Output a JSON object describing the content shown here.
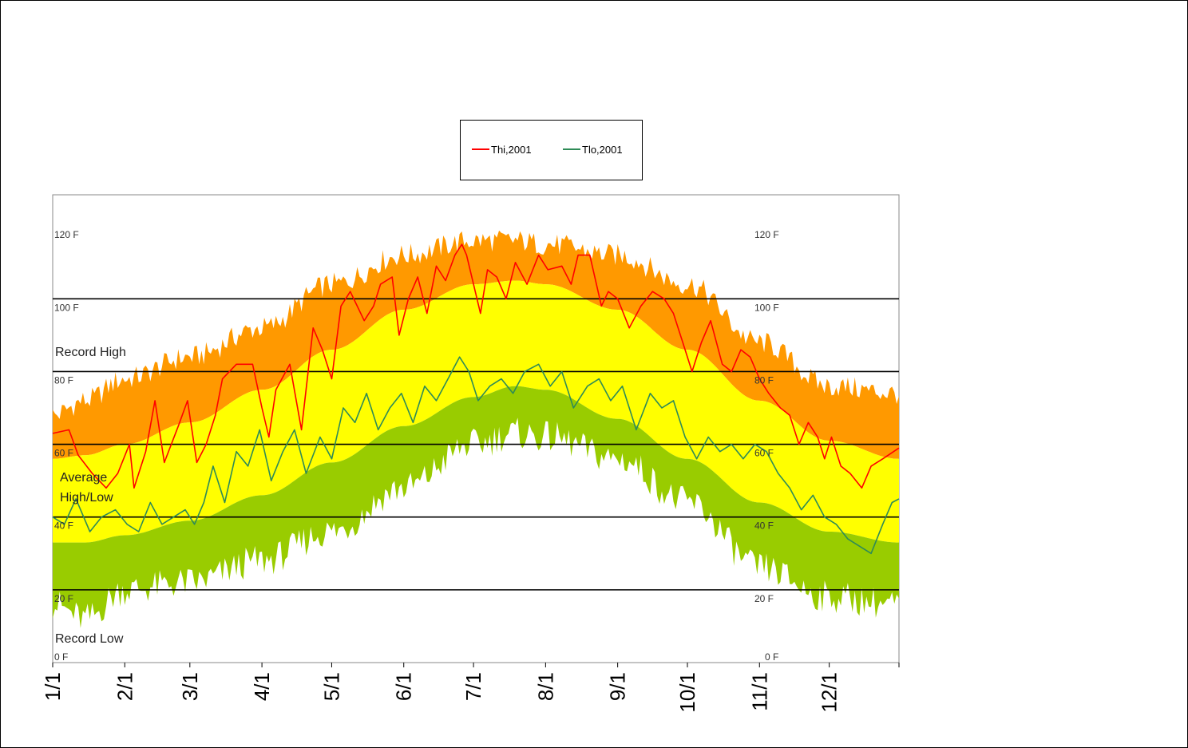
{
  "legend": {
    "items": [
      {
        "name": "Thi,2001",
        "color": "#ff0000"
      },
      {
        "name": "Tlo,2001",
        "color": "#2e8b57"
      }
    ]
  },
  "band_labels": {
    "record_high": "Record High",
    "average_line1": "Average",
    "average_line2": "High/Low",
    "record_low": "Record Low"
  },
  "colors": {
    "record_band": "#ff9900",
    "average_band": "#ffff00",
    "low_band": "#99cc00",
    "thi": "#ff0000",
    "tlo": "#2e8b57",
    "gridline": "#000000"
  },
  "chart_data": {
    "type": "line",
    "title": "",
    "xlabel": "",
    "ylabel": "",
    "ylim": [
      0,
      120
    ],
    "grid": true,
    "legend_position": "top-center",
    "y_ticks_left": [
      "0 F",
      "20 F",
      "40 F",
      "60 F",
      "80 F",
      "100 F",
      "120 F"
    ],
    "y_ticks_right": [
      "0 F",
      "20 F",
      "40 F",
      "60 F",
      "80 F",
      "100 F",
      "120 F"
    ],
    "x_ticks": [
      "1/1",
      "2/1",
      "3/1",
      "4/1",
      "5/1",
      "6/1",
      "7/1",
      "8/1",
      "9/1",
      "10/1",
      "11/1",
      "12/1"
    ],
    "x_tick_days": [
      1,
      32,
      60,
      91,
      121,
      152,
      182,
      213,
      244,
      274,
      305,
      335
    ],
    "x_range_days": [
      1,
      365
    ],
    "bands": {
      "record_high": {
        "x": [
          1,
          15,
          32,
          60,
          91,
          121,
          152,
          182,
          200,
          213,
          244,
          274,
          305,
          335,
          365
        ],
        "y": [
          68,
          72,
          78,
          84,
          92,
          104,
          112,
          116,
          116,
          115,
          112,
          104,
          88,
          76,
          74
        ]
      },
      "avg_high": {
        "x": [
          1,
          15,
          32,
          60,
          91,
          121,
          152,
          182,
          200,
          213,
          244,
          274,
          305,
          335,
          365
        ],
        "y": [
          56,
          57,
          60,
          66,
          75,
          86,
          97,
          104,
          105,
          104,
          97,
          86,
          72,
          61,
          56
        ]
      },
      "avg_low": {
        "x": [
          1,
          15,
          32,
          60,
          91,
          121,
          152,
          182,
          200,
          213,
          244,
          274,
          305,
          335,
          365
        ],
        "y": [
          33,
          33,
          35,
          39,
          46,
          55,
          65,
          73,
          76,
          75,
          67,
          56,
          44,
          36,
          33
        ]
      },
      "record_low": {
        "x": [
          1,
          15,
          32,
          60,
          91,
          121,
          152,
          182,
          200,
          213,
          244,
          274,
          305,
          335,
          365
        ],
        "y": [
          16,
          12,
          20,
          22,
          28,
          36,
          48,
          60,
          63,
          62,
          56,
          44,
          26,
          18,
          16
        ]
      }
    },
    "series": [
      {
        "name": "Thi,2001",
        "x": [
          1,
          8,
          12,
          18,
          24,
          29,
          34,
          36,
          41,
          45,
          49,
          55,
          59,
          63,
          67,
          71,
          74,
          80,
          87,
          91,
          94,
          97,
          103,
          108,
          113,
          117,
          121,
          125,
          129,
          135,
          139,
          142,
          147,
          150,
          154,
          158,
          162,
          166,
          170,
          174,
          177,
          179,
          182,
          185,
          188,
          192,
          196,
          200,
          205,
          210,
          214,
          220,
          224,
          227,
          232,
          237,
          240,
          244,
          249,
          254,
          259,
          264,
          268,
          272,
          276,
          280,
          284,
          289,
          293,
          297,
          301,
          305,
          309,
          314,
          318,
          322,
          326,
          330,
          333,
          336,
          340,
          344,
          349,
          353,
          358,
          365
        ],
        "y": [
          63,
          64,
          57,
          52,
          48,
          52,
          60,
          48,
          58,
          72,
          55,
          65,
          72,
          55,
          60,
          68,
          78,
          82,
          82,
          70,
          62,
          75,
          82,
          64,
          92,
          86,
          78,
          98,
          102,
          94,
          98,
          104,
          106,
          90,
          100,
          106,
          96,
          109,
          105,
          112,
          115,
          112,
          104,
          96,
          108,
          106,
          100,
          110,
          104,
          112,
          108,
          109,
          104,
          112,
          112,
          98,
          102,
          100,
          92,
          98,
          102,
          100,
          96,
          88,
          80,
          88,
          94,
          82,
          80,
          86,
          84,
          78,
          74,
          70,
          68,
          60,
          66,
          62,
          56,
          62,
          54,
          52,
          48,
          54,
          56,
          59
        ]
      },
      {
        "name": "Tlo,2001",
        "x": [
          1,
          6,
          11,
          17,
          22,
          28,
          33,
          38,
          43,
          48,
          53,
          58,
          62,
          66,
          70,
          75,
          80,
          85,
          90,
          95,
          100,
          105,
          110,
          116,
          121,
          126,
          131,
          136,
          141,
          146,
          151,
          156,
          161,
          166,
          171,
          176,
          180,
          184,
          189,
          194,
          199,
          204,
          210,
          215,
          220,
          225,
          231,
          236,
          241,
          246,
          252,
          258,
          263,
          268,
          273,
          278,
          283,
          288,
          293,
          298,
          303,
          308,
          313,
          318,
          323,
          328,
          333,
          338,
          343,
          348,
          353,
          358,
          362,
          365
        ],
        "y": [
          40,
          38,
          45,
          36,
          40,
          42,
          38,
          36,
          44,
          38,
          40,
          42,
          38,
          44,
          54,
          44,
          58,
          54,
          64,
          50,
          58,
          64,
          52,
          62,
          56,
          70,
          66,
          74,
          64,
          70,
          74,
          66,
          76,
          72,
          78,
          84,
          80,
          72,
          76,
          78,
          74,
          80,
          82,
          76,
          80,
          70,
          76,
          78,
          72,
          76,
          64,
          74,
          70,
          72,
          62,
          56,
          62,
          58,
          60,
          56,
          60,
          58,
          52,
          48,
          42,
          46,
          40,
          38,
          34,
          32,
          30,
          38,
          44,
          45
        ]
      }
    ]
  }
}
